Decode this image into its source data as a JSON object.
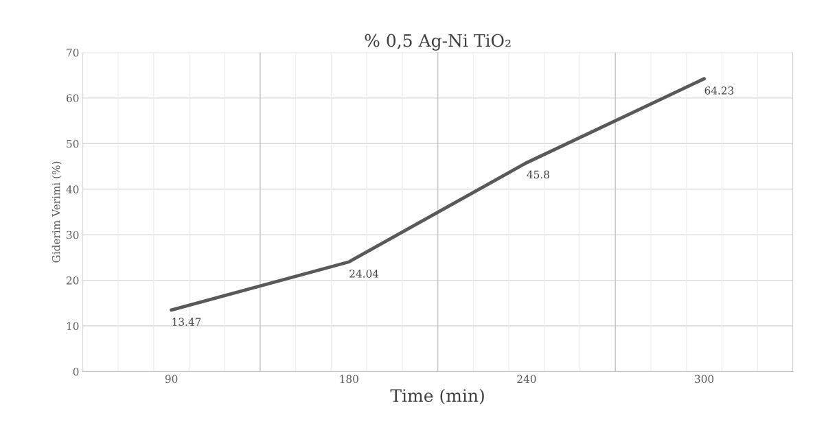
{
  "chart_data": {
    "type": "line",
    "title": "% 0,5 Ag-Ni TiO₂",
    "xlabel": "Time (min)",
    "ylabel": "Giderim Verimi (%)",
    "categories": [
      "90",
      "180",
      "240",
      "300"
    ],
    "series": [
      {
        "color": "#595959",
        "values": [
          13.47,
          24.04,
          45.8,
          64.23
        ]
      }
    ],
    "ylim": [
      0,
      70
    ],
    "yticks": [
      0,
      10,
      20,
      30,
      40,
      50,
      60,
      70
    ],
    "grid": true,
    "data_labels": true,
    "marker": "none",
    "line_style": "solid",
    "legend": false
  }
}
